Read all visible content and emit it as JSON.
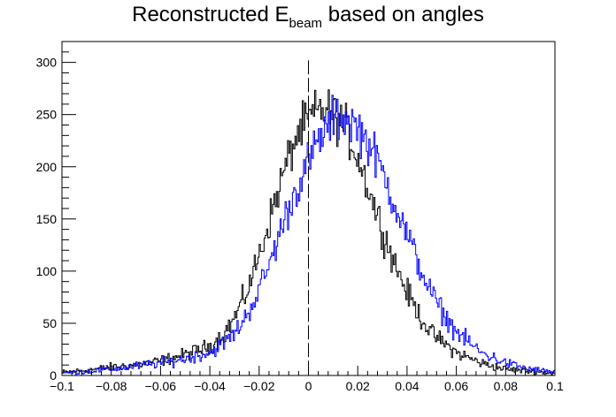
{
  "chart_data": {
    "type": "line",
    "title_main": "Reconstructed E",
    "title_sub": "beam",
    "title_rest": " based on angles",
    "xlabel": "",
    "ylabel": "",
    "xlim": [
      -0.1,
      0.1
    ],
    "ylim": [
      0,
      320
    ],
    "x_ticks": [
      -0.1,
      -0.08,
      -0.06,
      -0.04,
      -0.02,
      0,
      0.02,
      0.04,
      0.06,
      0.08,
      0.1
    ],
    "x_tick_labels": [
      "−0.1",
      "−0.08",
      "−0.06",
      "−0.04",
      "−0.02",
      "0",
      "0.02",
      "0.04",
      "0.06",
      "0.08",
      "0.1"
    ],
    "y_ticks": [
      0,
      50,
      100,
      150,
      200,
      250,
      300
    ],
    "y_tick_labels": [
      "0",
      "50",
      "100",
      "150",
      "200",
      "250",
      "300"
    ],
    "grid": false,
    "legend": "none",
    "vertical_marker_x": 0,
    "series": [
      {
        "color": "#000000",
        "x": [
          -0.1,
          -0.09,
          -0.08,
          -0.07,
          -0.06,
          -0.05,
          -0.04,
          -0.035,
          -0.03,
          -0.025,
          -0.02,
          -0.015,
          -0.01,
          -0.005,
          0,
          0.005,
          0.01,
          0.015,
          0.02,
          0.025,
          0.03,
          0.035,
          0.04,
          0.045,
          0.05,
          0.06,
          0.07,
          0.08,
          0.09,
          0.1
        ],
        "values": [
          3,
          5,
          8,
          10,
          14,
          20,
          28,
          38,
          55,
          80,
          115,
          155,
          195,
          228,
          245,
          255,
          250,
          238,
          210,
          175,
          140,
          108,
          80,
          58,
          40,
          22,
          12,
          6,
          4,
          2
        ]
      },
      {
        "color": "#0000ff",
        "x": [
          -0.1,
          -0.09,
          -0.08,
          -0.07,
          -0.06,
          -0.05,
          -0.04,
          -0.035,
          -0.03,
          -0.025,
          -0.02,
          -0.015,
          -0.01,
          -0.005,
          0,
          0.005,
          0.01,
          0.015,
          0.02,
          0.025,
          0.03,
          0.035,
          0.04,
          0.045,
          0.05,
          0.055,
          0.06,
          0.07,
          0.08,
          0.09,
          0.1
        ],
        "values": [
          2,
          4,
          6,
          9,
          12,
          16,
          22,
          30,
          40,
          58,
          82,
          112,
          148,
          178,
          205,
          228,
          245,
          248,
          238,
          220,
          195,
          165,
          135,
          105,
          78,
          58,
          42,
          22,
          12,
          6,
          3
        ]
      }
    ]
  }
}
